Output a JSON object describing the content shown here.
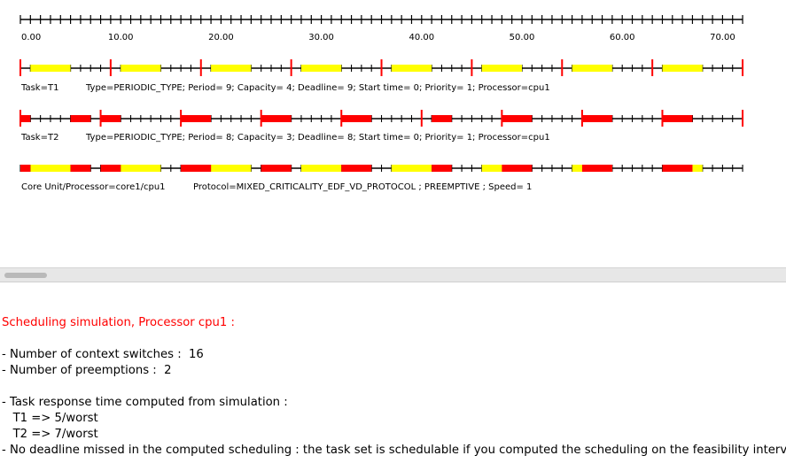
{
  "timeline": {
    "axis_ticks": [
      "0.00",
      "10.00",
      "20.00",
      "30.00",
      "40.00",
      "50.00",
      "60.00",
      "70.00"
    ],
    "task_t1": {
      "label": "Task=T1",
      "info": "Type=PERIODIC_TYPE; Period= 9; Capacity= 4; Deadline= 9; Start time= 0; Priority= 1; Processor=cpu1"
    },
    "task_t2": {
      "label": "Task=T2",
      "info": "Type=PERIODIC_TYPE; Period= 8; Capacity= 3; Deadline= 8; Start time= 0; Priority= 1; Processor=cpu1"
    },
    "core": {
      "label": "Core Unit/Processor=core1/cpu1",
      "info": "Protocol=MIXED_CRITICALITY_EDF_VD_PROTOCOL ; PREEMPTIVE ; Speed= 1"
    },
    "colors": {
      "t1": "#ffff00",
      "t2": "#ff0000",
      "marker": "#ff0000",
      "line": "#000000"
    }
  },
  "results": {
    "title": "Scheduling simulation, Processor cpu1 :",
    "context_switches": "- Number of context switches :  16",
    "preemptions": "- Number of preemptions :  2",
    "response_header": "- Task response time computed from simulation :",
    "t1_response": "   T1 => 5/worst",
    "t2_response": "   T2 => 7/worst",
    "deadline": "- No deadline missed in the computed scheduling : the task set is schedulable if you computed the scheduling on the feasibility interval."
  }
}
